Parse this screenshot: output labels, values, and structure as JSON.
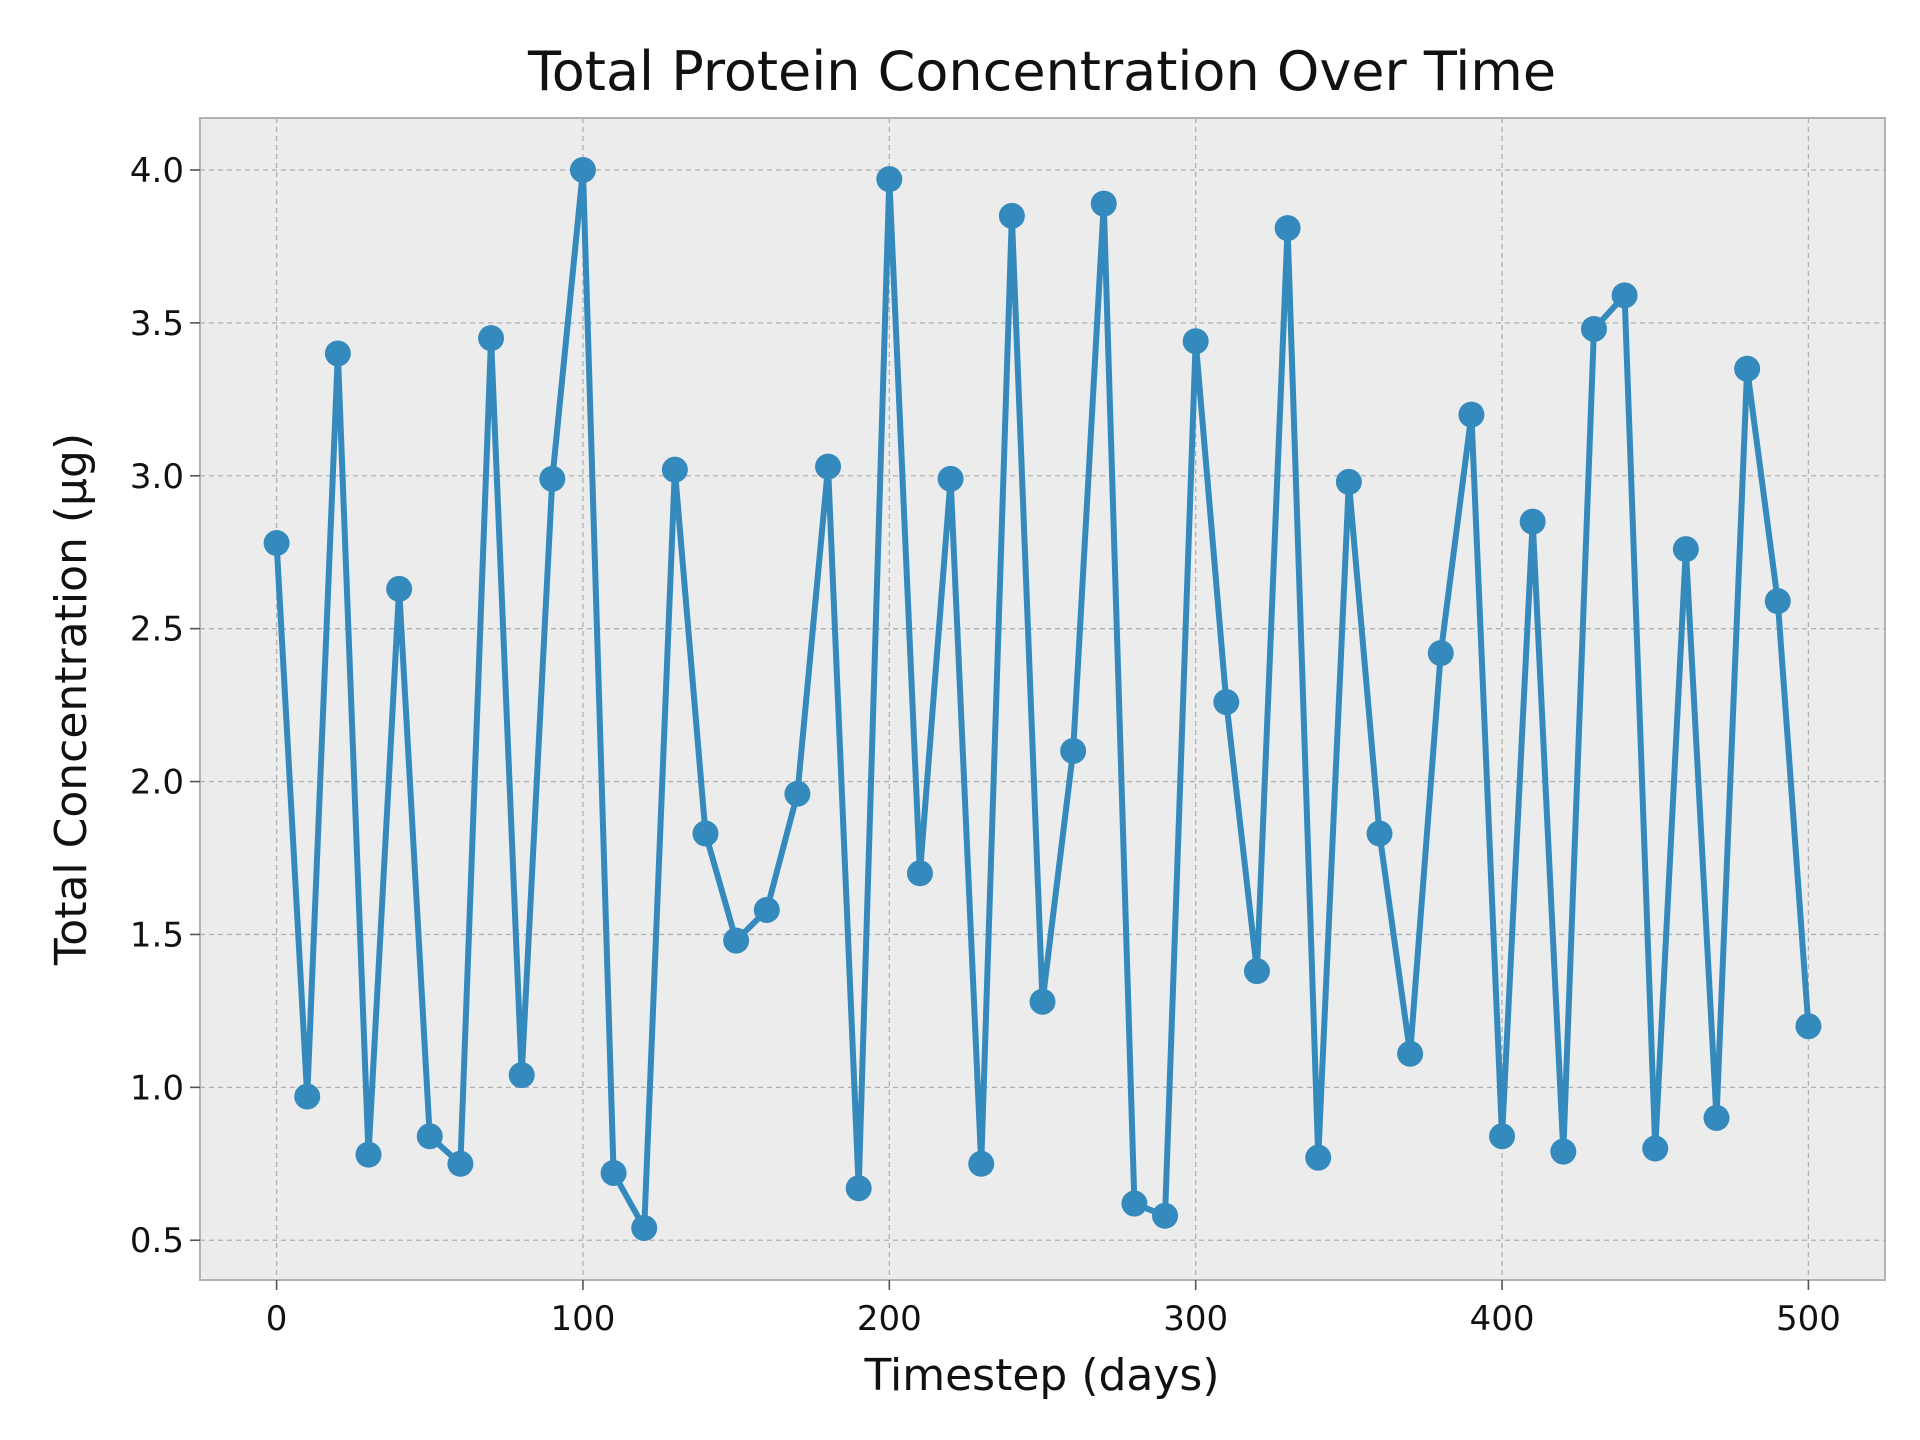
{
  "chart_data": {
    "type": "line",
    "title": "Total Protein Concentration Over Time",
    "xlabel": "Timestep (days)",
    "ylabel": "Total Concentration (μg)",
    "xlim": [
      -25,
      525
    ],
    "ylim": [
      0.37,
      4.17
    ],
    "xticks": [
      0,
      100,
      200,
      300,
      400,
      500
    ],
    "xtick_labels": [
      "0",
      "100",
      "200",
      "300",
      "400",
      "500"
    ],
    "yticks": [
      0.5,
      1.0,
      1.5,
      2.0,
      2.5,
      3.0,
      3.5,
      4.0
    ],
    "ytick_labels": [
      "0.5",
      "1.0",
      "1.5",
      "2.0",
      "2.5",
      "3.0",
      "3.5",
      "4.0"
    ],
    "grid": true,
    "colors": {
      "series": "#348abd",
      "plot_background": "#ececec"
    },
    "x": [
      0,
      10,
      20,
      30,
      40,
      50,
      60,
      70,
      80,
      90,
      100,
      110,
      120,
      130,
      140,
      150,
      160,
      170,
      180,
      190,
      200,
      210,
      220,
      230,
      240,
      250,
      260,
      270,
      280,
      290,
      300,
      310,
      320,
      330,
      340,
      350,
      360,
      370,
      380,
      390,
      400,
      410,
      420,
      430,
      440,
      450,
      460,
      470,
      480,
      490,
      500
    ],
    "series": [
      {
        "values": [
          2.78,
          0.97,
          3.4,
          0.78,
          2.63,
          0.84,
          0.75,
          3.45,
          1.04,
          2.99,
          4.0,
          0.72,
          0.54,
          3.02,
          1.83,
          1.48,
          1.58,
          1.96,
          3.03,
          0.67,
          3.97,
          1.7,
          2.99,
          0.75,
          3.85,
          1.28,
          2.1,
          3.89,
          0.62,
          0.58,
          3.44,
          2.26,
          1.38,
          3.81,
          0.77,
          2.98,
          1.83,
          1.11,
          2.42,
          3.2,
          0.84,
          2.85,
          0.79,
          3.48,
          3.59,
          0.8,
          2.76,
          0.9,
          3.35,
          2.59,
          1.2
        ]
      }
    ]
  }
}
